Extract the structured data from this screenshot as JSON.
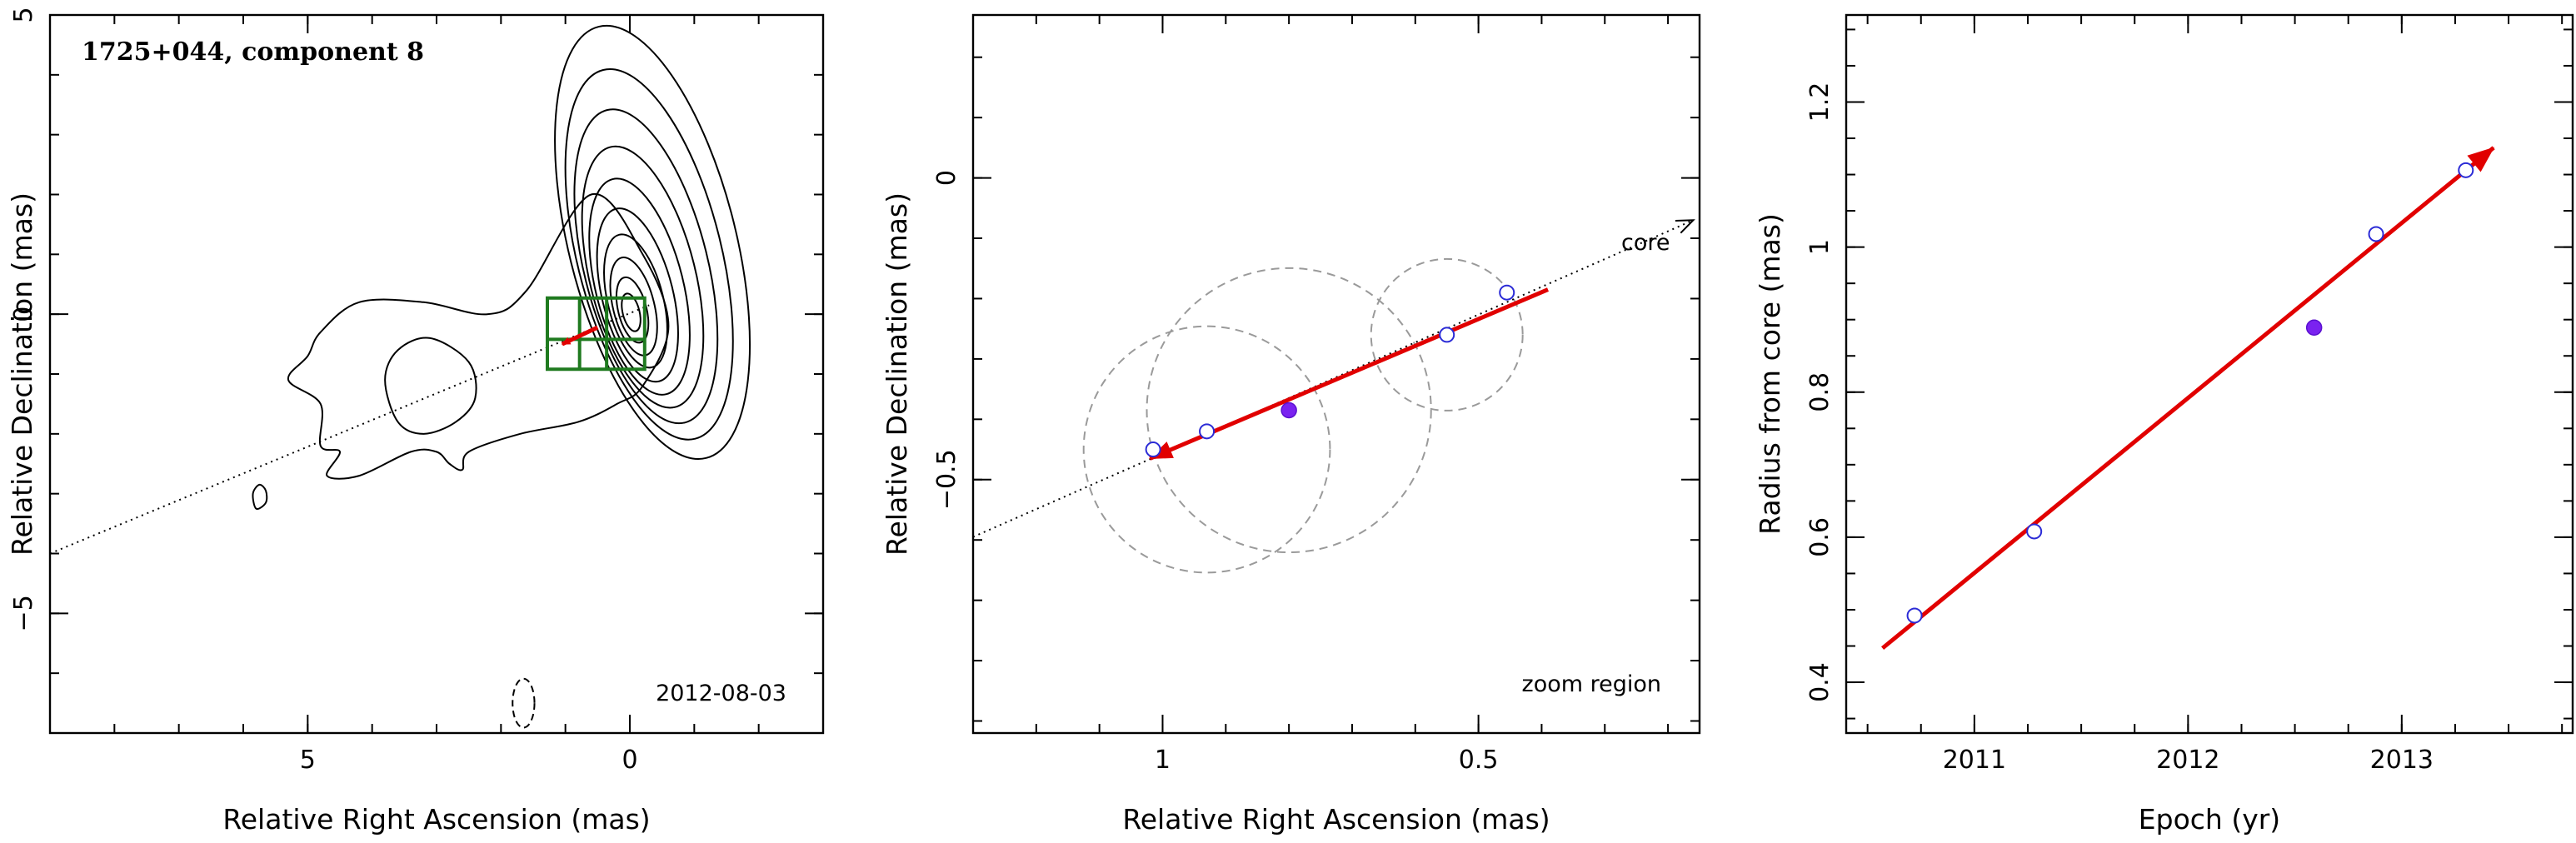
{
  "figure": {
    "source_name": "1725+044",
    "component": "component 8",
    "title": "1725+044, component 8",
    "epoch_label": "2012-08-03",
    "zoom_label": "zoom region",
    "core_label": "core",
    "colors": {
      "contours": "#000000",
      "box": "#1f7a1f",
      "trend": "#e10000",
      "open_points": "#2b2bd6",
      "highlight_point": "#7a22f0",
      "fit_circles": "#9a9a9a"
    }
  },
  "chart_data": [
    {
      "type": "contour",
      "panel": "map",
      "xlabel": "Relative Right Ascension (mas)",
      "ylabel": "Relative Declination (mas)",
      "xlim": [
        9.0,
        -3.0
      ],
      "ylim": [
        -7.0,
        5.0
      ],
      "x_direction": "reversed",
      "xticks": [
        5,
        0
      ],
      "yticks": [
        5,
        0,
        -5
      ],
      "xtick_labels": [
        "5",
        "0"
      ],
      "ytick_labels": [
        "5",
        "0",
        "−5"
      ],
      "grid": false,
      "annotations": [
        "1725+044, component 8",
        "2012-08-03"
      ],
      "core": [
        0,
        0
      ],
      "jet_axis_through": [
        [
          9.0,
          -4.0
        ],
        [
          -0.3,
          0.15
        ]
      ]
    },
    {
      "type": "scatter",
      "panel": "zoom",
      "xlabel": "Relative Right Ascension (mas)",
      "ylabel": "Relative Declination (mas)",
      "xlim": [
        1.3,
        0.15
      ],
      "ylim": [
        -0.92,
        0.27
      ],
      "x_direction": "reversed",
      "xticks": [
        1,
        0.5
      ],
      "yticks": [
        0,
        -0.5
      ],
      "xtick_labels": [
        "1",
        "0.5"
      ],
      "ytick_labels": [
        "0",
        "−0.5"
      ],
      "grid": false,
      "annotations": [
        "zoom region",
        "core"
      ],
      "points_open": [
        {
          "x": 1.015,
          "y": -0.45
        },
        {
          "x": 0.93,
          "y": -0.42
        },
        {
          "x": 0.55,
          "y": -0.26
        },
        {
          "x": 0.455,
          "y": -0.19
        }
      ],
      "points_filled": [
        {
          "x": 0.8,
          "y": -0.385
        }
      ],
      "fit_circles": [
        {
          "x": 0.93,
          "y": -0.45,
          "r": 0.195
        },
        {
          "x": 0.8,
          "y": -0.385,
          "r": 0.225
        },
        {
          "x": 0.55,
          "y": -0.26,
          "r": 0.12
        }
      ],
      "trend": {
        "from": {
          "x": 0.39,
          "y": -0.185
        },
        "to": {
          "x": 1.02,
          "y": -0.465
        }
      },
      "jet_axis": {
        "from": {
          "x": 1.3,
          "y": -0.595
        },
        "to": {
          "x": 0.16,
          "y": -0.07
        }
      }
    },
    {
      "type": "scatter",
      "panel": "radius",
      "xlabel": "Epoch (yr)",
      "ylabel": "Radius from core (mas)",
      "xlim": [
        2010.4,
        2013.8
      ],
      "ylim": [
        0.33,
        1.32
      ],
      "xticks": [
        2011,
        2012,
        2013
      ],
      "yticks": [
        0.4,
        0.6,
        0.8,
        1.0,
        1.2
      ],
      "xtick_labels": [
        "2011",
        "2012",
        "2013"
      ],
      "ytick_labels": [
        "0.4",
        "0.6",
        "0.8",
        "1",
        "1.2"
      ],
      "grid": false,
      "points_open": [
        {
          "x": 2010.72,
          "y": 0.492
        },
        {
          "x": 2011.28,
          "y": 0.608
        },
        {
          "x": 2012.88,
          "y": 1.018
        },
        {
          "x": 2013.3,
          "y": 1.106
        }
      ],
      "points_filled": [
        {
          "x": 2012.59,
          "y": 0.889
        }
      ],
      "trend": {
        "from": {
          "x": 2010.57,
          "y": 0.447
        },
        "to": {
          "x": 2013.43,
          "y": 1.137
        }
      }
    }
  ]
}
